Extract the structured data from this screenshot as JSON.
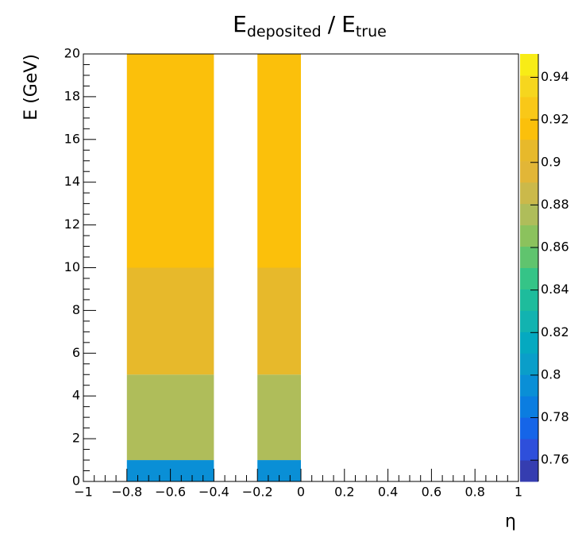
{
  "chart_data": {
    "type": "heatmap",
    "title": {
      "main1": "E",
      "sub1": "deposited",
      "sep": "/",
      "main2": "E",
      "sub2": "true"
    },
    "x_label": "η",
    "y_label": "E (GeV)",
    "xlim": [
      -1,
      1
    ],
    "ylim": [
      0,
      20
    ],
    "zlim": [
      0.75,
      0.951
    ],
    "xticks": [
      {
        "value": -1,
        "label": "−1"
      },
      {
        "value": -0.8,
        "label": "−0.8"
      },
      {
        "value": -0.6,
        "label": "−0.6"
      },
      {
        "value": -0.4,
        "label": "−0.4"
      },
      {
        "value": -0.2,
        "label": "−0.2"
      },
      0,
      0.2,
      0.4,
      0.6,
      0.8,
      1
    ],
    "yticks": [
      0,
      2,
      4,
      6,
      8,
      10,
      12,
      14,
      16,
      18,
      20
    ],
    "zticks": [
      0.76,
      0.78,
      0.8,
      0.82,
      0.84,
      0.86,
      0.88,
      0.9,
      0.92,
      0.94
    ],
    "palette": [
      "#353db0",
      "#2e4fdb",
      "#1565e8",
      "#0b7de0",
      "#0a8fd6",
      "#0a9ec9",
      "#05a9c0",
      "#12b3b0",
      "#1ebc9c",
      "#35c487",
      "#60c46e",
      "#8bc25d",
      "#afbd5a",
      "#cbb94a",
      "#e2b637",
      "#e7b92b",
      "#fbc00b",
      "#f9c818",
      "#f6d61e",
      "#f8ec16"
    ],
    "cells": [
      {
        "x": [
          -0.8,
          -0.4
        ],
        "y": [
          0,
          1
        ],
        "z": 0.8
      },
      {
        "x": [
          -0.8,
          -0.4
        ],
        "y": [
          1,
          5
        ],
        "z": 0.88
      },
      {
        "x": [
          -0.8,
          -0.4
        ],
        "y": [
          5,
          10
        ],
        "z": 0.905
      },
      {
        "x": [
          -0.8,
          -0.4
        ],
        "y": [
          10,
          20
        ],
        "z": 0.915
      },
      {
        "x": [
          -0.2,
          0
        ],
        "y": [
          0,
          1
        ],
        "z": 0.8
      },
      {
        "x": [
          -0.2,
          0
        ],
        "y": [
          1,
          5
        ],
        "z": 0.88
      },
      {
        "x": [
          -0.2,
          0
        ],
        "y": [
          5,
          10
        ],
        "z": 0.905
      },
      {
        "x": [
          -0.2,
          0
        ],
        "y": [
          10,
          20
        ],
        "z": 0.915
      }
    ]
  }
}
